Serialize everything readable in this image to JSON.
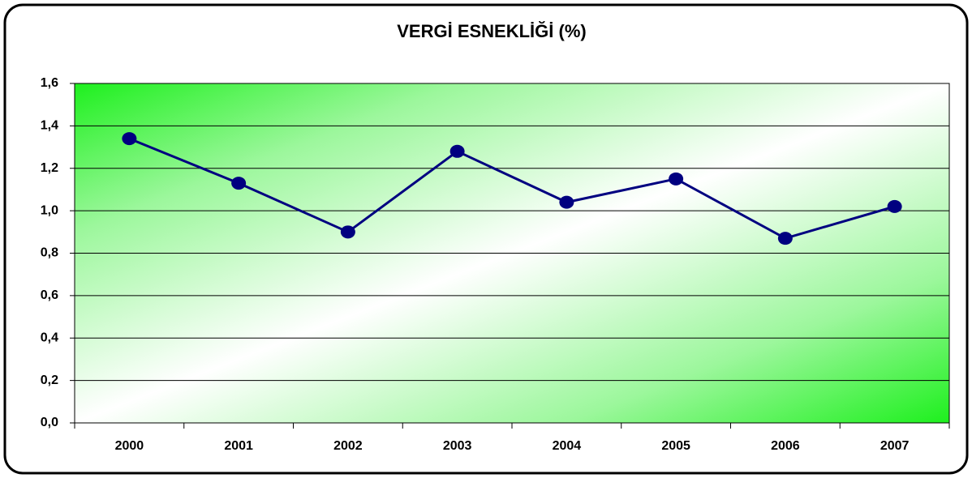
{
  "chart_data": {
    "type": "line",
    "title": "VERGİ ESNEKLİĞİ (%)",
    "categories": [
      "2000",
      "2001",
      "2002",
      "2003",
      "2004",
      "2005",
      "2006",
      "2007"
    ],
    "series": [
      {
        "name": "Vergi Esnekliği",
        "color": "#000080",
        "values": [
          1.34,
          1.13,
          0.9,
          1.28,
          1.04,
          1.15,
          0.87,
          1.02
        ]
      }
    ],
    "ylim": [
      0,
      1.6
    ],
    "yticks": [
      {
        "value": 0,
        "label": "0,0"
      },
      {
        "value": 0.2,
        "label": "0,2"
      },
      {
        "value": 0.4,
        "label": "0,4"
      },
      {
        "value": 0.6,
        "label": "0,6"
      },
      {
        "value": 0.8,
        "label": "0,8"
      },
      {
        "value": 1.0,
        "label": "1,0"
      },
      {
        "value": 1.2,
        "label": "1,2"
      },
      {
        "value": 1.4,
        "label": "1,4"
      },
      {
        "value": 1.6,
        "label": "1,6"
      }
    ],
    "grid": true
  }
}
